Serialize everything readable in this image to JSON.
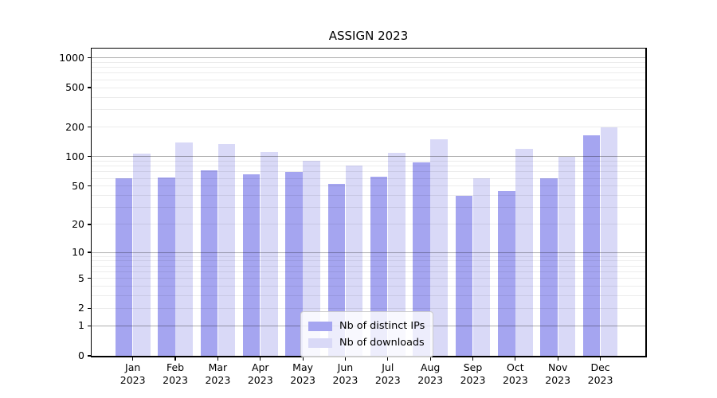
{
  "chart_data": {
    "type": "bar",
    "title": "ASSIGN 2023",
    "categories": [
      {
        "month": "Jan",
        "year": "2023"
      },
      {
        "month": "Feb",
        "year": "2023"
      },
      {
        "month": "Mar",
        "year": "2023"
      },
      {
        "month": "Apr",
        "year": "2023"
      },
      {
        "month": "May",
        "year": "2023"
      },
      {
        "month": "Jun",
        "year": "2023"
      },
      {
        "month": "Jul",
        "year": "2023"
      },
      {
        "month": "Aug",
        "year": "2023"
      },
      {
        "month": "Sep",
        "year": "2023"
      },
      {
        "month": "Oct",
        "year": "2023"
      },
      {
        "month": "Nov",
        "year": "2023"
      },
      {
        "month": "Dec",
        "year": "2023"
      }
    ],
    "series": [
      {
        "name": "Nb of distinct IPs",
        "color": "#a5a5f0",
        "values": [
          60,
          61,
          72,
          66,
          70,
          53,
          63,
          87,
          40,
          45,
          60,
          165
        ]
      },
      {
        "name": "Nb of downloads",
        "color": "#d9d9f7",
        "values": [
          108,
          140,
          134,
          112,
          91,
          81,
          110,
          150,
          60,
          120,
          100,
          200
        ]
      }
    ],
    "yscale": "log1p",
    "ylim": [
      0,
      1240
    ],
    "y_ticks": [
      {
        "value": 1000,
        "label": "1000"
      },
      {
        "value": 500,
        "label": "500"
      },
      {
        "value": 200,
        "label": "200"
      },
      {
        "value": 100,
        "label": "100"
      },
      {
        "value": 50,
        "label": "50"
      },
      {
        "value": 20,
        "label": "20"
      },
      {
        "value": 10,
        "label": "10"
      },
      {
        "value": 5,
        "label": "5"
      },
      {
        "value": 2,
        "label": "2"
      },
      {
        "value": 1,
        "label": "1"
      },
      {
        "value": 0,
        "label": "0"
      }
    ],
    "grid": "horizontal",
    "legend_position": "inside lower center"
  },
  "colors": {
    "bar_distinct_ips": "#a5a5f0",
    "bar_downloads": "#d9d9f7",
    "major_grid": "#b3b3b3",
    "minor_grid": "#ebebeb",
    "axis": "#000000",
    "legend_border": "#cccccc"
  }
}
